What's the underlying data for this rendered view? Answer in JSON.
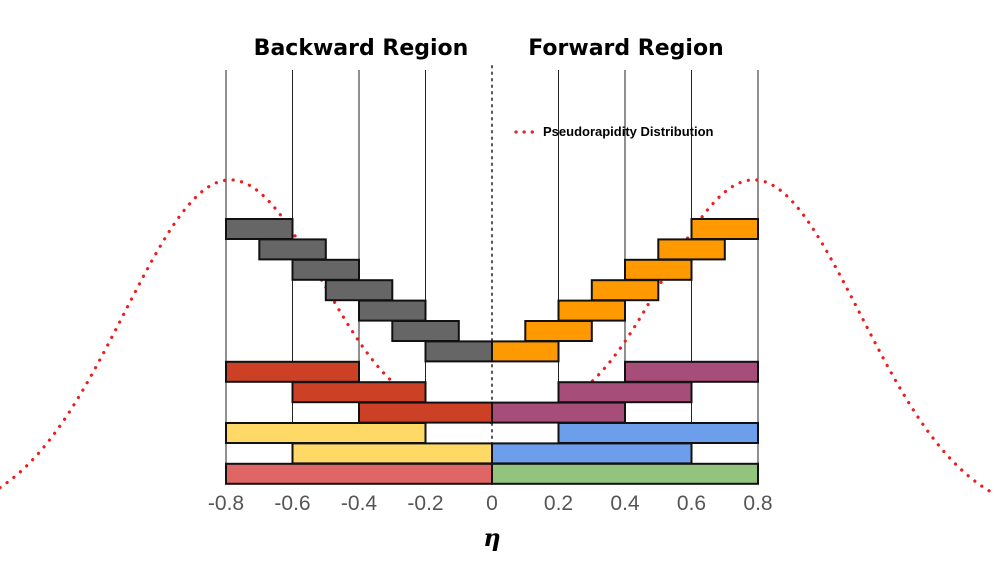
{
  "titles": {
    "backward": "Backward Region",
    "forward": "Forward Region"
  },
  "legend": {
    "label": "Pseudorapidity Distribution",
    "color": "#ee1c1c"
  },
  "axis": {
    "label": "η",
    "range": [
      -0.8,
      0.8
    ],
    "ticks": [
      {
        "value": -0.8,
        "label": "-0.8"
      },
      {
        "value": -0.6,
        "label": "-0.6"
      },
      {
        "value": -0.4,
        "label": "-0.4"
      },
      {
        "value": -0.2,
        "label": "-0.2"
      },
      {
        "value": 0,
        "label": "0"
      },
      {
        "value": 0.2,
        "label": "0.2"
      },
      {
        "value": 0.4,
        "label": "0.4"
      },
      {
        "value": 0.6,
        "label": "0.6"
      },
      {
        "value": 0.8,
        "label": "0.8"
      }
    ]
  },
  "colors": {
    "gray": "#666666",
    "orange": "#ff9900",
    "red": "#cc4125",
    "purple": "#a64d79",
    "yellow": "#ffd966",
    "blue": "#6d9eeb",
    "pink": "#e06666",
    "green": "#93c47d"
  },
  "bins": [
    {
      "name": "gray-bin-1",
      "eta": [
        -0.8,
        -0.6
      ],
      "level": 1,
      "color": "gray"
    },
    {
      "name": "gray-bin-2",
      "eta": [
        -0.7,
        -0.5
      ],
      "level": 2,
      "color": "gray"
    },
    {
      "name": "gray-bin-3",
      "eta": [
        -0.6,
        -0.4
      ],
      "level": 3,
      "color": "gray"
    },
    {
      "name": "gray-bin-4",
      "eta": [
        -0.5,
        -0.3
      ],
      "level": 4,
      "color": "gray"
    },
    {
      "name": "gray-bin-5",
      "eta": [
        -0.4,
        -0.2
      ],
      "level": 5,
      "color": "gray"
    },
    {
      "name": "gray-bin-6",
      "eta": [
        -0.3,
        -0.1
      ],
      "level": 6,
      "color": "gray"
    },
    {
      "name": "gray-bin-7",
      "eta": [
        -0.2,
        0.0
      ],
      "level": 7,
      "color": "gray"
    },
    {
      "name": "orange-bin-1",
      "eta": [
        0.6,
        0.8
      ],
      "level": 1,
      "color": "orange"
    },
    {
      "name": "orange-bin-2",
      "eta": [
        0.5,
        0.7
      ],
      "level": 2,
      "color": "orange"
    },
    {
      "name": "orange-bin-3",
      "eta": [
        0.4,
        0.6
      ],
      "level": 3,
      "color": "orange"
    },
    {
      "name": "orange-bin-4",
      "eta": [
        0.3,
        0.5
      ],
      "level": 4,
      "color": "orange"
    },
    {
      "name": "orange-bin-5",
      "eta": [
        0.2,
        0.4
      ],
      "level": 5,
      "color": "orange"
    },
    {
      "name": "orange-bin-6",
      "eta": [
        0.1,
        0.3
      ],
      "level": 6,
      "color": "orange"
    },
    {
      "name": "orange-bin-7",
      "eta": [
        0.0,
        0.2
      ],
      "level": 7,
      "color": "orange"
    },
    {
      "name": "red-bin-1",
      "eta": [
        -0.8,
        -0.4
      ],
      "level": 8,
      "color": "red"
    },
    {
      "name": "red-bin-2",
      "eta": [
        -0.6,
        -0.2
      ],
      "level": 9,
      "color": "red"
    },
    {
      "name": "red-bin-3",
      "eta": [
        -0.4,
        0.0
      ],
      "level": 10,
      "color": "red"
    },
    {
      "name": "purple-bin-1",
      "eta": [
        0.4,
        0.8
      ],
      "level": 8,
      "color": "purple"
    },
    {
      "name": "purple-bin-2",
      "eta": [
        0.2,
        0.6
      ],
      "level": 9,
      "color": "purple"
    },
    {
      "name": "purple-bin-3",
      "eta": [
        0.0,
        0.4
      ],
      "level": 10,
      "color": "purple"
    },
    {
      "name": "yellow-bin-1",
      "eta": [
        -0.8,
        -0.2
      ],
      "level": 11,
      "color": "yellow"
    },
    {
      "name": "yellow-bin-2",
      "eta": [
        -0.6,
        0.0
      ],
      "level": 12,
      "color": "yellow"
    },
    {
      "name": "blue-bin-1",
      "eta": [
        0.2,
        0.8
      ],
      "level": 11,
      "color": "blue"
    },
    {
      "name": "blue-bin-2",
      "eta": [
        0.0,
        0.6
      ],
      "level": 12,
      "color": "blue"
    },
    {
      "name": "pink-bin-1",
      "eta": [
        -0.8,
        0.0
      ],
      "level": 13,
      "color": "pink"
    },
    {
      "name": "green-bin-1",
      "eta": [
        0.0,
        0.8
      ],
      "level": 13,
      "color": "green"
    }
  ]
}
